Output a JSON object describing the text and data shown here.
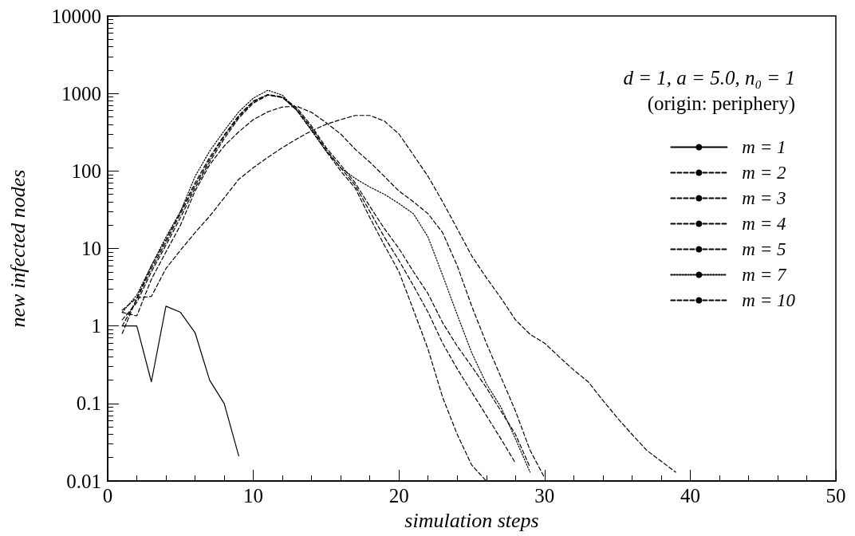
{
  "chart_data": {
    "type": "line",
    "xlabel": "simulation steps",
    "ylabel": "new infected nodes",
    "annotations": [
      "d = 1, a = 5.0, n₀ = 1",
      "(origin: periphery)"
    ],
    "x": [
      1,
      2,
      3,
      4,
      5,
      6,
      7,
      8,
      9,
      10,
      11,
      12,
      13,
      14,
      15,
      16,
      17,
      18,
      19,
      20,
      21,
      22,
      23,
      24,
      25,
      26,
      27,
      28,
      29,
      30,
      31,
      32,
      33,
      34,
      35,
      36,
      37,
      38,
      39
    ],
    "series": [
      {
        "name": "m = 1",
        "color": "#000000",
        "line_style": "solid",
        "values": [
          1,
          1,
          0.19,
          1.8,
          1.5,
          0.82,
          0.2,
          0.1,
          0.021,
          null,
          null,
          null,
          null,
          null,
          null,
          null,
          null,
          null,
          null,
          null,
          null,
          null,
          null,
          null,
          null,
          null,
          null,
          null,
          null,
          null,
          null,
          null,
          null,
          null,
          null,
          null,
          null,
          null,
          null
        ]
      },
      {
        "name": "m = 2",
        "color": "#000000",
        "line_style": "dashed",
        "values": [
          1.6,
          2.3,
          2.4,
          5.5,
          9.5,
          16,
          26,
          45,
          78,
          110,
          150,
          200,
          260,
          330,
          400,
          460,
          520,
          520,
          440,
          300,
          160,
          85,
          40,
          18,
          8,
          4.2,
          2.3,
          1.2,
          0.78,
          0.6,
          0.4,
          0.27,
          0.19,
          0.11,
          0.065,
          0.04,
          0.025,
          0.018,
          0.013
        ]
      },
      {
        "name": "m = 3",
        "color": "#000000",
        "line_style": "dashed",
        "values": [
          1.5,
          1.35,
          4,
          9,
          20,
          55,
          120,
          210,
          320,
          460,
          580,
          670,
          680,
          570,
          420,
          300,
          190,
          130,
          85,
          55,
          40,
          28,
          16,
          6,
          1.8,
          0.6,
          0.22,
          0.08,
          0.025,
          0.011,
          null,
          null,
          null,
          null,
          null,
          null,
          null,
          null,
          null
        ]
      },
      {
        "name": "m = 4",
        "color": "#000000",
        "line_style": "dashed",
        "values": [
          1.2,
          2,
          5,
          11,
          25,
          60,
          130,
          260,
          480,
          750,
          950,
          900,
          650,
          380,
          200,
          120,
          70,
          35,
          18,
          10,
          5,
          2.6,
          1.1,
          0.55,
          0.3,
          0.16,
          0.08,
          0.04,
          0.015,
          null,
          null,
          null,
          null,
          null,
          null,
          null,
          null,
          null,
          null
        ]
      },
      {
        "name": "m = 5",
        "color": "#000000",
        "line_style": "dashed",
        "values": [
          1,
          2.2,
          5.5,
          12,
          28,
          65,
          140,
          280,
          500,
          780,
          960,
          880,
          620,
          360,
          190,
          110,
          65,
          30,
          14,
          7,
          3.3,
          1.5,
          0.6,
          0.28,
          0.14,
          0.07,
          0.035,
          0.017,
          null,
          null,
          null,
          null,
          null,
          null,
          null,
          null,
          null,
          null,
          null
        ]
      },
      {
        "name": "m = 7",
        "color": "#000000",
        "line_style": "dotted",
        "values": [
          1.5,
          2.5,
          6,
          14,
          30,
          85,
          180,
          330,
          580,
          870,
          1100,
          950,
          600,
          330,
          180,
          110,
          80,
          62,
          50,
          38,
          28,
          14,
          4.5,
          1.4,
          0.45,
          0.18,
          0.09,
          0.035,
          0.013,
          null,
          null,
          null,
          null,
          null,
          null,
          null,
          null,
          null,
          null
        ]
      },
      {
        "name": "m = 10",
        "color": "#000000",
        "line_style": "dashed",
        "values": [
          0.8,
          2.3,
          6,
          13,
          30,
          70,
          150,
          290,
          520,
          800,
          970,
          900,
          600,
          340,
          180,
          100,
          60,
          25,
          11,
          5,
          1.6,
          0.5,
          0.12,
          0.04,
          0.016,
          0.01,
          null,
          null,
          null,
          null,
          null,
          null,
          null,
          null,
          null,
          null,
          null,
          null,
          null
        ]
      }
    ],
    "log": "y",
    "xlim": [
      0,
      50
    ],
    "xticks": [
      0,
      10,
      20,
      30,
      40,
      50
    ],
    "ylim": [
      0.01,
      10000
    ],
    "yticks": [
      0.01,
      0.1,
      1,
      10,
      100,
      1000,
      10000
    ],
    "legend": "top right",
    "marker": "none",
    "grid": false
  }
}
